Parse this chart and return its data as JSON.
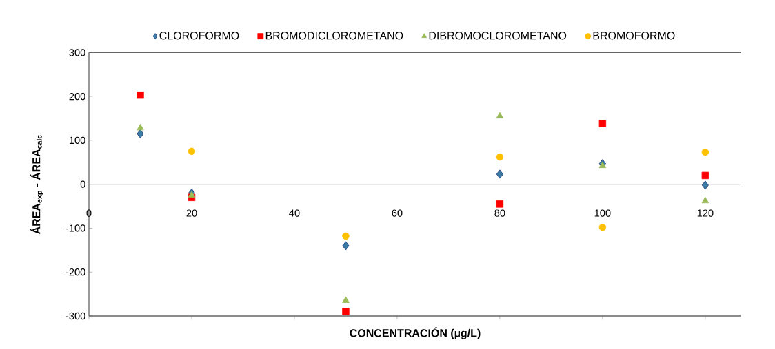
{
  "chart_data": {
    "type": "scatter",
    "xlabel": "**CONCENTRACIÓN (µg/L)**",
    "ylabel": "**ÁREA$_{exp}$ - ÁREA$_{calc}$**",
    "xlim": [
      0,
      127
    ],
    "xticks": [
      0,
      20,
      40,
      60,
      80,
      100,
      120
    ],
    "ylim": [
      -300,
      300
    ],
    "yticks": [
      -300,
      -200,
      -100,
      0,
      100,
      200,
      300
    ],
    "grid": false,
    "legend": "top",
    "series": [
      {
        "name": "CLOROFORMO",
        "color": "#3a7ca5",
        "marker": "diamond",
        "x": [
          10,
          20,
          50,
          80,
          100,
          120
        ],
        "values": [
          115,
          -20,
          -140,
          23,
          47,
          -2
        ]
      },
      {
        "name": "BROMODICLOROMETANO",
        "color": "#ff0000",
        "marker": "square",
        "x": [
          10,
          20,
          50,
          80,
          100,
          120
        ],
        "values": [
          203,
          -30,
          -290,
          -45,
          138,
          20
        ]
      },
      {
        "name": "DIBROMOCLOROMETANO",
        "color": "#9bbb59",
        "marker": "triangle",
        "x": [
          10,
          20,
          50,
          80,
          100,
          120
        ],
        "values": [
          128,
          -25,
          -265,
          155,
          42,
          -38
        ]
      },
      {
        "name": "BROMOFORMO",
        "color": "#ffc000",
        "marker": "circle",
        "x": [
          20,
          50,
          80,
          100,
          120
        ],
        "values": [
          75,
          -118,
          62,
          -98,
          73
        ]
      }
    ]
  }
}
